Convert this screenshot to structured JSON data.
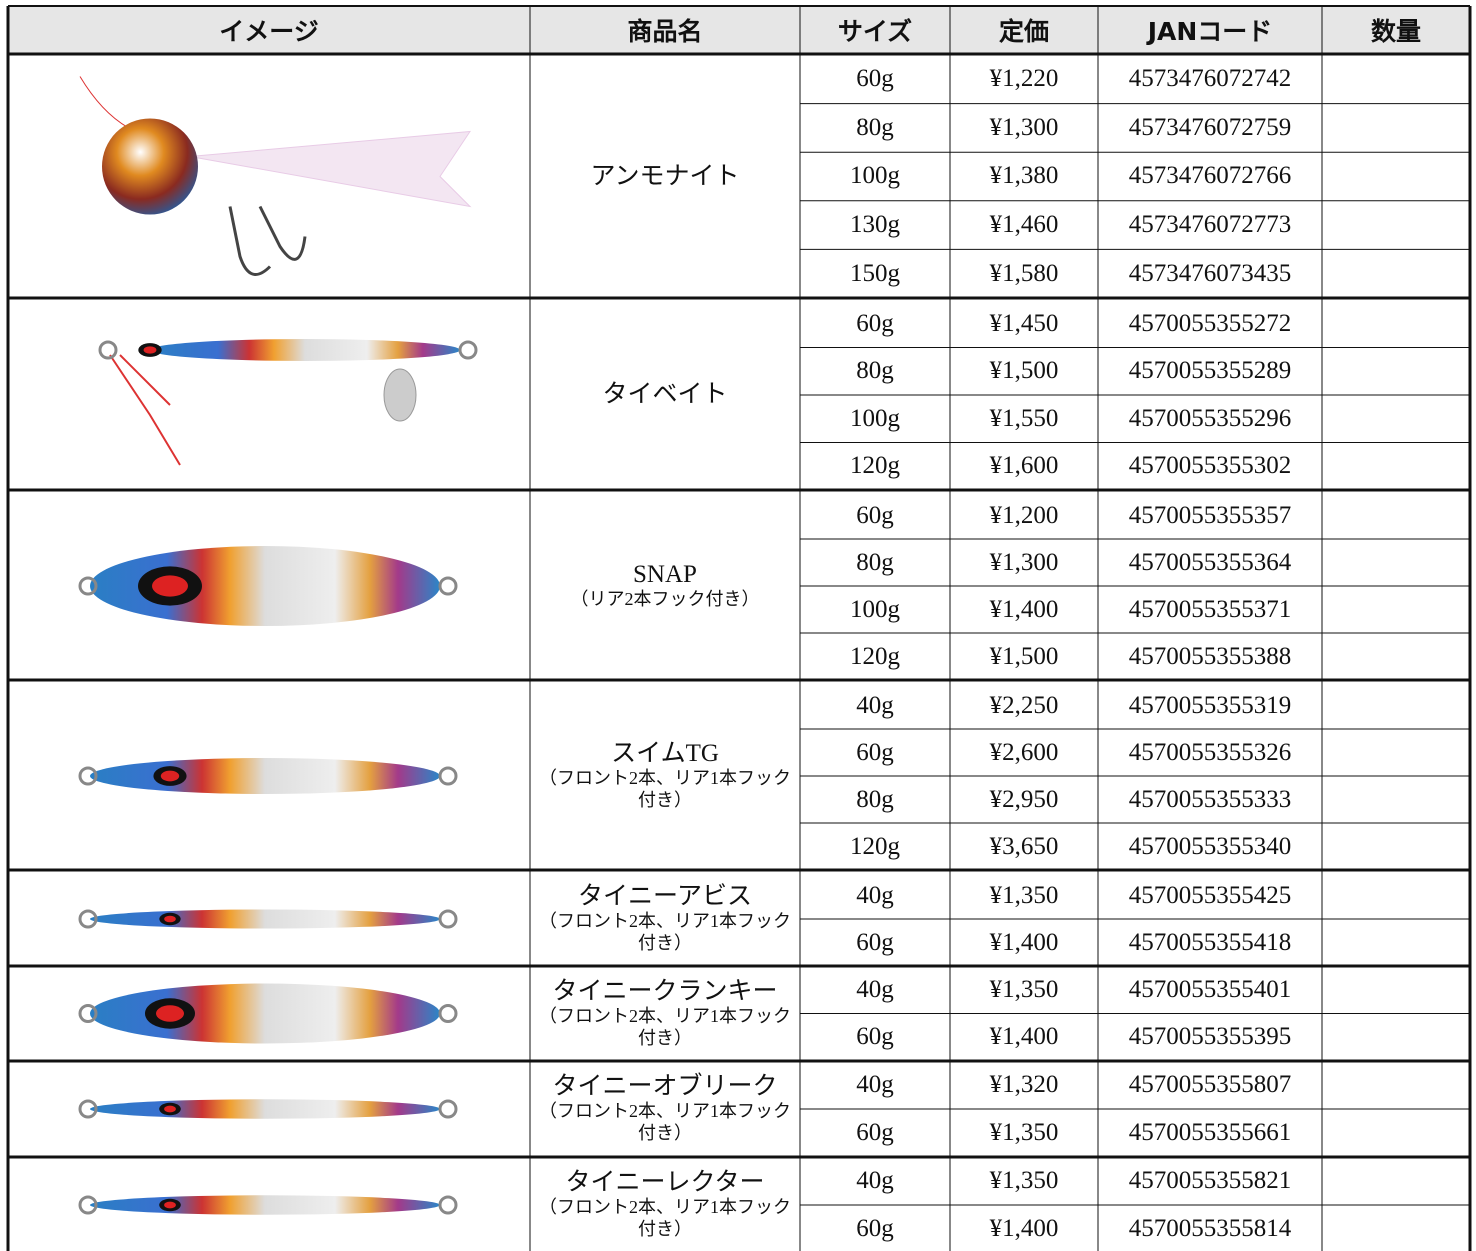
{
  "header": [
    "イメージ",
    "商品名",
    "サイズ",
    "定価",
    "JANコード",
    "数量"
  ],
  "products": [
    {
      "name": "アンモナイト",
      "variants": [
        {
          "size": "60g",
          "price": "¥1,220",
          "jan": "4573476072742"
        },
        {
          "size": "80g",
          "price": "¥1,300",
          "jan": "4573476072759"
        },
        {
          "size": "100g",
          "price": "¥1,380",
          "jan": "4573476072766"
        },
        {
          "size": "130g",
          "price": "¥1,460",
          "jan": "4573476072773"
        },
        {
          "size": "150g",
          "price": "¥1,580",
          "jan": "4573476073435"
        }
      ]
    },
    {
      "name": "タイベイト",
      "variants": [
        {
          "size": "60g",
          "price": "¥1,450",
          "jan": "4570055355272"
        },
        {
          "size": "80g",
          "price": "¥1,500",
          "jan": "4570055355289"
        },
        {
          "size": "100g",
          "price": "¥1,550",
          "jan": "4570055355296"
        },
        {
          "size": "120g",
          "price": "¥1,600",
          "jan": "4570055355302"
        }
      ]
    },
    {
      "name": "SNAP",
      "note": "（リア2本フック付き）",
      "variants": [
        {
          "size": "60g",
          "price": "¥1,200",
          "jan": "4570055355357"
        },
        {
          "size": "80g",
          "price": "¥1,300",
          "jan": "4570055355364"
        },
        {
          "size": "100g",
          "price": "¥1,400",
          "jan": "4570055355371"
        },
        {
          "size": "120g",
          "price": "¥1,500",
          "jan": "4570055355388"
        }
      ]
    },
    {
      "name": "スイムTG",
      "note": "（フロント2本、リア1本フック付き）",
      "variants": [
        {
          "size": "40g",
          "price": "¥2,250",
          "jan": "4570055355319"
        },
        {
          "size": "60g",
          "price": "¥2,600",
          "jan": "4570055355326"
        },
        {
          "size": "80g",
          "price": "¥2,950",
          "jan": "4570055355333"
        },
        {
          "size": "120g",
          "price": "¥3,650",
          "jan": "4570055355340"
        }
      ]
    },
    {
      "name": "タイニーアビス",
      "note": "（フロント2本、リア1本フック付き）",
      "variants": [
        {
          "size": "40g",
          "price": "¥1,350",
          "jan": "4570055355425"
        },
        {
          "size": "60g",
          "price": "¥1,400",
          "jan": "4570055355418"
        }
      ]
    },
    {
      "name": "タイニークランキー",
      "note": "（フロント2本、リア1本フック付き）",
      "variants": [
        {
          "size": "40g",
          "price": "¥1,350",
          "jan": "4570055355401"
        },
        {
          "size": "60g",
          "price": "¥1,400",
          "jan": "4570055355395"
        }
      ]
    },
    {
      "name": "タイニーオブリーク",
      "note": "（フロント2本、リア1本フック付き）",
      "variants": [
        {
          "size": "40g",
          "price": "¥1,320",
          "jan": "4570055355807"
        },
        {
          "size": "60g",
          "price": "¥1,350",
          "jan": "4570055355661"
        }
      ]
    },
    {
      "name": "タイニーレクター",
      "note": "（フロント2本、リア1本フック付き）",
      "variants": [
        {
          "size": "40g",
          "price": "¥1,350",
          "jan": "4570055355821"
        },
        {
          "size": "60g",
          "price": "¥1,400",
          "jan": "4570055355814"
        }
      ]
    }
  ]
}
